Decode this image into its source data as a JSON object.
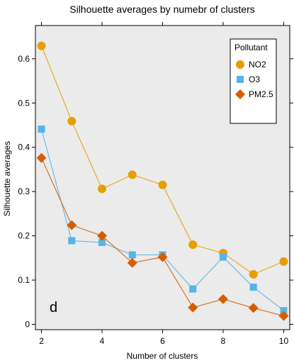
{
  "chart_data": {
    "type": "line",
    "title": "Silhouette averages by numebr of clusters",
    "xlabel": "Number of clusters",
    "ylabel": "Silhouette averages",
    "panel_label": "d",
    "x": [
      2,
      3,
      4,
      5,
      6,
      7,
      8,
      9,
      10
    ],
    "xlim": [
      1.8,
      10.2
    ],
    "ylim": [
      -0.012,
      0.675
    ],
    "x_ticks": [
      2,
      4,
      6,
      8,
      10
    ],
    "x_tick_labels": [
      "2",
      "4",
      "6",
      "8",
      "10"
    ],
    "y_ticks": [
      0,
      0.1,
      0.2,
      0.3,
      0.4,
      0.5,
      0.6
    ],
    "y_tick_labels": [
      "0",
      "0.1",
      "0.2",
      "0.3",
      "0.4",
      "0.5",
      "0.6"
    ],
    "grid": false,
    "legend": {
      "title": "Pollutant",
      "position": "top-right"
    },
    "series": [
      {
        "name": "NO2",
        "marker": "circle",
        "color": "#E69F00",
        "values": [
          0.629,
          0.459,
          0.306,
          0.338,
          0.315,
          0.18,
          0.161,
          0.113,
          0.142
        ]
      },
      {
        "name": "O3",
        "marker": "square",
        "color": "#56B4E9",
        "values": [
          0.441,
          0.189,
          0.185,
          0.157,
          0.157,
          0.08,
          0.152,
          0.084,
          0.031
        ]
      },
      {
        "name": "PM2.5",
        "marker": "diamond",
        "color": "#D55E00",
        "values": [
          0.376,
          0.224,
          0.2,
          0.139,
          0.152,
          0.038,
          0.057,
          0.037,
          0.019
        ]
      }
    ]
  },
  "colors": {
    "panel_bg": "#EBEBEB",
    "frame": "#000000",
    "legend_bg": "#FFFFFF"
  }
}
